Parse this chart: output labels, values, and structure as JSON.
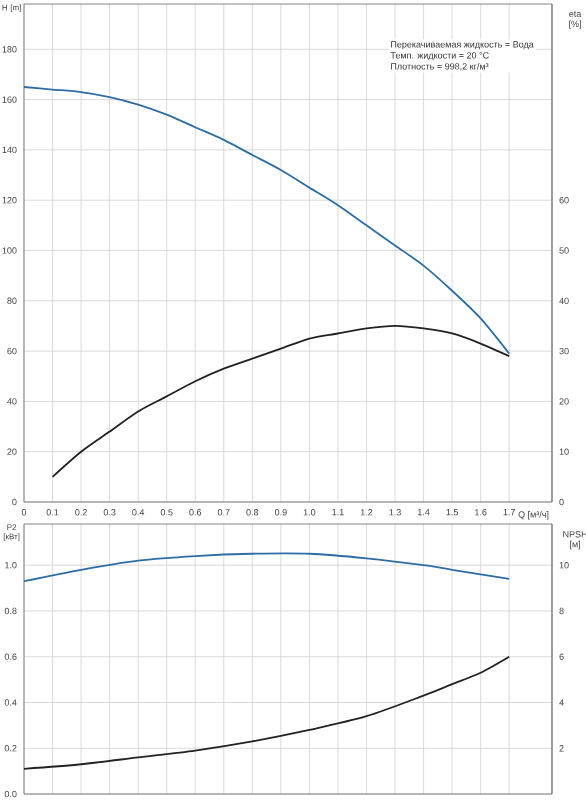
{
  "chart_data": [
    {
      "type": "line",
      "xlabel": "Q [м³/ч]",
      "ylabel": "H [m]",
      "y2label": "eta [%]",
      "annotations": [
        "Перекачиваемая жидкость = Вода",
        "Темп. жидкости = 20 °C",
        "Плотность = 998,2 кг/м³"
      ],
      "x": [
        0,
        0.1,
        0.2,
        0.3,
        0.4,
        0.5,
        0.6,
        0.7,
        0.8,
        0.9,
        1.0,
        1.1,
        1.2,
        1.3,
        1.4,
        1.5,
        1.6,
        1.7
      ],
      "series": [
        {
          "color": "#2e6da4",
          "values": [
            165,
            164,
            163,
            161,
            158,
            154,
            149,
            144,
            138,
            132,
            125,
            118,
            110,
            102,
            94,
            84,
            73,
            59
          ]
        },
        {
          "color": "#222222",
          "axis": "y2",
          "values": [
            null,
            5,
            10,
            14,
            18,
            21,
            24,
            26.5,
            28.5,
            30.5,
            32.5,
            33.5,
            34.5,
            35,
            34.5,
            33.5,
            31.5,
            29
          ]
        }
      ],
      "xlim": [
        0,
        1.85
      ],
      "xticks": [
        {
          "value": 0,
          "label": "0"
        },
        0.1,
        0.2,
        0.3,
        0.4,
        0.5,
        0.6,
        0.7,
        0.8,
        0.9,
        {
          "value": 1,
          "label": "1.0"
        },
        1.1,
        1.2,
        1.3,
        1.4,
        1.5,
        1.6,
        1.7
      ],
      "ylim": [
        0,
        198
      ],
      "yticks": [
        0,
        20,
        40,
        60,
        80,
        100,
        120,
        140,
        160,
        180
      ],
      "y2lim": [
        0,
        99
      ],
      "y2ticks": [
        0,
        10,
        20,
        30,
        40,
        50,
        60
      ],
      "grid": true
    },
    {
      "type": "line",
      "ylabel": "P2 [кВт]",
      "y2label": "NPSH [м]",
      "x": [
        0,
        0.2,
        0.4,
        0.6,
        0.8,
        1.0,
        1.2,
        1.4,
        1.5,
        1.6,
        1.7
      ],
      "series": [
        {
          "color": "#2e6da4",
          "values": [
            0.93,
            0.98,
            1.02,
            1.04,
            1.05,
            1.05,
            1.03,
            1.0,
            0.98,
            0.96,
            0.94
          ]
        },
        {
          "color": "#222222",
          "axis": "y2",
          "values": [
            1.1,
            1.3,
            1.6,
            1.9,
            2.3,
            2.8,
            3.4,
            4.3,
            4.8,
            5.3,
            6.0
          ]
        }
      ],
      "xlim": [
        0,
        1.85
      ],
      "xticks": [
        0,
        0.1,
        0.2,
        0.3,
        0.4,
        0.5,
        0.6,
        0.7,
        0.8,
        0.9,
        1,
        1.1,
        1.2,
        1.3,
        1.4,
        1.5,
        1.6,
        1.7
      ],
      "ylim": [
        0,
        1.18
      ],
      "yticks": [
        {
          "value": 0,
          "label": "0.0"
        },
        0.2,
        0.4,
        0.6,
        0.8,
        {
          "value": 1,
          "label": "1.0"
        }
      ],
      "y2lim": [
        0,
        11.8
      ],
      "y2ticks": [
        2,
        4,
        6,
        8,
        10
      ],
      "tick_labels": "y",
      "grid": true
    }
  ]
}
